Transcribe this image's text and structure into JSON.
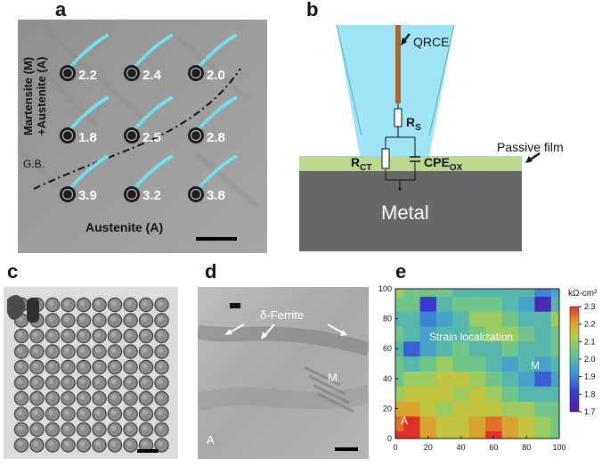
{
  "figure": {
    "panel_a": {
      "letter": "a",
      "side_label_line1": "Martensite (M)",
      "side_label_line2": "+Austenite (A)",
      "bottom_label": "Austenite (A)",
      "gb_label": "G.B.",
      "spot_values": [
        "2.2",
        "2.4",
        "2.0",
        "1.8",
        "2.5",
        "2.8",
        "3.9",
        "3.2",
        "3.8"
      ]
    },
    "panel_b": {
      "letter": "b",
      "probe_label": "QRCE",
      "rs_label": "R",
      "rs_sub": "S",
      "rct_label": "R",
      "rct_sub": "CT",
      "cpe_label": "CPE",
      "cpe_sub": "OX",
      "film_label": "Passive film",
      "metal_label": "Metal",
      "colors": {
        "electrolyte": "#9fe4f5",
        "film": "#bcd88f",
        "metal": "#676767",
        "probe": "#a8672c"
      }
    },
    "panel_c": {
      "letter": "c"
    },
    "panel_d": {
      "letter": "d",
      "ferrite_label": "δ-Ferrite",
      "m_label": "M",
      "a_label": "A"
    },
    "panel_e": {
      "letter": "e",
      "annotation_strain": "Strain localization",
      "annotation_m": "M",
      "annotation_a": "A",
      "colorbar_unit": "kΩ-cm²",
      "colorbar_ticks": [
        "2.3",
        "2.2",
        "2.1",
        "2.0",
        "1.9",
        "1.8",
        "1.7"
      ],
      "x_ticks": [
        "0",
        "20",
        "40",
        "60",
        "80",
        "100"
      ],
      "y_ticks": [
        "0",
        "20",
        "40",
        "60",
        "80",
        "100"
      ]
    }
  },
  "chart_data": {
    "type": "heatmap",
    "title": "",
    "xlabel": "",
    "ylabel": "",
    "xlim": [
      0,
      100
    ],
    "ylim": [
      0,
      100
    ],
    "colorbar_range": [
      1.7,
      2.3
    ],
    "colorbar_unit": "kΩ-cm²",
    "x": [
      0,
      10,
      20,
      30,
      40,
      50,
      60,
      70,
      80,
      90,
      100
    ],
    "y": [
      0,
      10,
      20,
      30,
      40,
      50,
      60,
      70,
      80,
      90,
      100
    ],
    "z": [
      [
        2.3,
        2.3,
        2.2,
        2.15,
        2.15,
        2.2,
        2.3,
        2.2,
        2.15,
        2.1,
        2.05
      ],
      [
        2.25,
        2.3,
        2.2,
        2.15,
        2.15,
        2.2,
        2.25,
        2.2,
        2.15,
        2.1,
        2.05
      ],
      [
        2.2,
        2.2,
        2.15,
        2.1,
        2.15,
        2.15,
        2.15,
        2.1,
        2.1,
        2.05,
        2.05
      ],
      [
        2.1,
        2.15,
        2.15,
        2.15,
        2.1,
        2.15,
        2.1,
        2.05,
        2.0,
        2.0,
        2.0
      ],
      [
        2.05,
        2.1,
        2.1,
        2.15,
        2.15,
        2.1,
        2.05,
        2.0,
        1.95,
        1.85,
        1.95
      ],
      [
        2.05,
        2.0,
        2.05,
        2.1,
        2.05,
        2.05,
        2.0,
        1.95,
        2.0,
        1.95,
        2.0
      ],
      [
        2.0,
        1.85,
        1.95,
        2.0,
        2.05,
        2.0,
        2.0,
        2.05,
        2.0,
        2.0,
        2.05
      ],
      [
        2.05,
        2.0,
        1.95,
        2.0,
        2.0,
        2.05,
        2.1,
        2.1,
        2.05,
        2.0,
        2.05
      ],
      [
        2.0,
        2.0,
        1.9,
        1.95,
        2.0,
        2.1,
        2.1,
        2.05,
        2.0,
        2.0,
        2.1
      ],
      [
        2.05,
        2.05,
        1.8,
        2.0,
        2.05,
        2.05,
        2.05,
        2.0,
        1.95,
        1.75,
        2.0
      ],
      [
        2.1,
        2.05,
        2.05,
        2.05,
        2.0,
        2.0,
        2.0,
        2.0,
        2.0,
        1.9,
        1.95
      ]
    ]
  }
}
